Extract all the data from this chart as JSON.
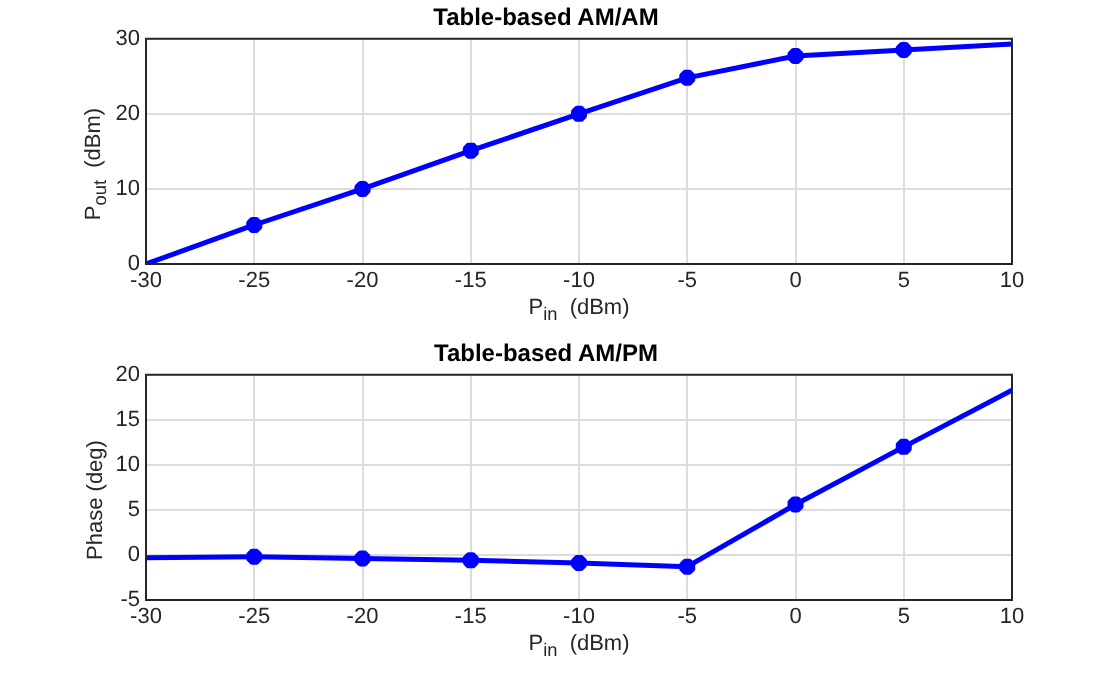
{
  "chart_data": [
    {
      "type": "line",
      "title": "Table-based AM/AM",
      "xlabel": "P$_{in}$  (dBm)",
      "ylabel": "P$_{out}$  (dBm)",
      "x": [
        -30,
        -25,
        -20,
        -15,
        -10,
        -5,
        0,
        5,
        10
      ],
      "xlim": [
        -30,
        10
      ],
      "xticks": [
        -30,
        -25,
        -20,
        -15,
        -10,
        -5,
        0,
        5,
        10
      ],
      "ylim": [
        0,
        30
      ],
      "yticks": [
        0,
        10,
        20,
        30
      ],
      "grid": true,
      "legend": false,
      "series": [
        {
          "color": "#0000ff",
          "marker": "none",
          "values": [
            0,
            5.2,
            10,
            15.1,
            20,
            24.8,
            27.7,
            28.5,
            29.3
          ]
        },
        {
          "type": "scatter",
          "color": "#0000ff",
          "marker": "cross",
          "x": [
            -25,
            -20,
            -15,
            -10,
            -5,
            0,
            5
          ],
          "values": [
            5.2,
            10,
            15.1,
            20,
            24.8,
            27.7,
            28.5
          ]
        }
      ]
    },
    {
      "type": "line",
      "title": "Table-based AM/PM",
      "xlabel": "P$_{in}$  (dBm)",
      "ylabel": "Phase (deg)",
      "x": [
        -30,
        -25,
        -20,
        -15,
        -10,
        -5,
        0,
        5,
        10
      ],
      "xlim": [
        -30,
        10
      ],
      "xticks": [
        -30,
        -25,
        -20,
        -15,
        -10,
        -5,
        0,
        5,
        10
      ],
      "ylim": [
        -5,
        20
      ],
      "yticks": [
        -5,
        0,
        5,
        10,
        15,
        20
      ],
      "grid": true,
      "legend": false,
      "series": [
        {
          "color": "#0000ff",
          "marker": "none",
          "values": [
            -0.3,
            -0.2,
            -0.4,
            -0.6,
            -0.9,
            -1.3,
            5.6,
            12,
            18.3
          ]
        },
        {
          "type": "scatter",
          "color": "#0000ff",
          "marker": "cross",
          "x": [
            -25,
            -20,
            -15,
            -10,
            -5,
            0,
            5
          ],
          "values": [
            -0.2,
            -0.4,
            -0.6,
            -0.9,
            -1.3,
            5.6,
            12
          ]
        }
      ]
    }
  ]
}
